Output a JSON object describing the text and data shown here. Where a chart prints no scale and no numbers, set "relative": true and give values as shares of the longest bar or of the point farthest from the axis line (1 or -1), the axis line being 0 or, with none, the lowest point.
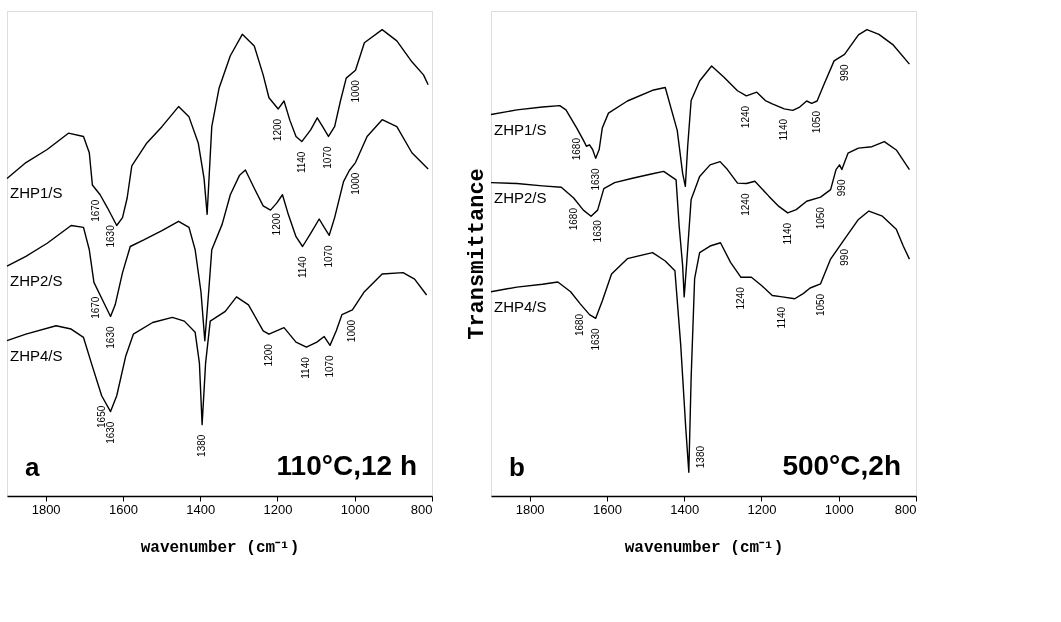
{
  "chart_data": [
    {
      "type": "line",
      "relative": true,
      "xlim": [
        1900,
        800
      ],
      "xticks": [
        1800,
        1600,
        1400,
        1200,
        1000,
        800
      ],
      "xlabel": "wavenumber (cm⁻¹)",
      "series": [
        {
          "name": "ZHP1/S",
          "color": "#000000",
          "x": [
            1900,
            1851,
            1796,
            1741,
            1702,
            1687,
            1679,
            1659,
            1640,
            1616,
            1601,
            1589,
            1577,
            1538,
            1499,
            1456,
            1429,
            1405,
            1390,
            1382,
            1378,
            1370,
            1351,
            1322,
            1291,
            1260,
            1237,
            1222,
            1198,
            1183,
            1168,
            1152,
            1137,
            1114,
            1097,
            1083,
            1068,
            1052,
            1037,
            1022,
            998,
            975,
            929,
            891,
            852,
            822,
            810
          ],
          "values": [
            0.681,
            0.715,
            0.743,
            0.778,
            0.771,
            0.736,
            0.667,
            0.646,
            0.618,
            0.58,
            0.597,
            0.639,
            0.708,
            0.757,
            0.792,
            0.835,
            0.813,
            0.757,
            0.681,
            0.604,
            0.667,
            0.792,
            0.875,
            0.944,
            0.99,
            0.965,
            0.903,
            0.854,
            0.83,
            0.847,
            0.806,
            0.771,
            0.76,
            0.785,
            0.811,
            0.792,
            0.771,
            0.792,
            0.847,
            0.896,
            0.913,
            0.972,
            1.0,
            0.976,
            0.931,
            0.903,
            0.882
          ]
        },
        {
          "name": "ZHP2/S",
          "color": "#000000",
          "x": [
            1900,
            1851,
            1796,
            1734,
            1702,
            1687,
            1675,
            1655,
            1632,
            1620,
            1601,
            1581,
            1546,
            1499,
            1456,
            1429,
            1413,
            1398,
            1388,
            1378,
            1370,
            1343,
            1322,
            1298,
            1283,
            1260,
            1237,
            1218,
            1202,
            1187,
            1172,
            1152,
            1135,
            1114,
            1092,
            1079,
            1066,
            1052,
            1029,
            1014,
            998,
            968,
            929,
            891,
            852,
            810
          ],
          "values": [
            0.493,
            0.514,
            0.542,
            0.58,
            0.576,
            0.528,
            0.458,
            0.424,
            0.385,
            0.41,
            0.479,
            0.535,
            0.549,
            0.569,
            0.589,
            0.576,
            0.528,
            0.438,
            0.333,
            0.438,
            0.528,
            0.583,
            0.646,
            0.688,
            0.699,
            0.66,
            0.622,
            0.613,
            0.628,
            0.646,
            0.604,
            0.556,
            0.535,
            0.563,
            0.594,
            0.576,
            0.559,
            0.597,
            0.674,
            0.698,
            0.715,
            0.771,
            0.807,
            0.792,
            0.736,
            0.701
          ]
        },
        {
          "name": "ZHP4/S",
          "color": "#000000",
          "x": [
            1900,
            1851,
            1773,
            1734,
            1702,
            1679,
            1655,
            1632,
            1616,
            1593,
            1573,
            1523,
            1472,
            1441,
            1413,
            1402,
            1395,
            1386,
            1374,
            1335,
            1306,
            1275,
            1237,
            1222,
            1183,
            1152,
            1125,
            1098,
            1079,
            1064,
            1048,
            1033,
            1006,
            975,
            929,
            875,
            845,
            814
          ],
          "values": [
            0.333,
            0.347,
            0.365,
            0.358,
            0.34,
            0.278,
            0.215,
            0.181,
            0.215,
            0.299,
            0.347,
            0.372,
            0.383,
            0.375,
            0.351,
            0.285,
            0.153,
            0.285,
            0.375,
            0.396,
            0.427,
            0.41,
            0.354,
            0.347,
            0.361,
            0.33,
            0.319,
            0.33,
            0.342,
            0.323,
            0.354,
            0.389,
            0.399,
            0.438,
            0.476,
            0.479,
            0.465,
            0.431
          ]
        }
      ],
      "annotations": [
        "a",
        "110°C,12 h",
        {
          "text": "1670",
          "x": 1670,
          "y": 0.657
        },
        {
          "text": "1630",
          "x": 1630,
          "y": 0.602
        },
        {
          "text": "1200",
          "x": 1198,
          "y": 0.83
        },
        {
          "text": "1140",
          "x": 1137,
          "y": 0.76
        },
        {
          "text": "1070",
          "x": 1068,
          "y": 0.771
        },
        {
          "text": "1000",
          "x": 998,
          "y": 0.913
        },
        {
          "text": "1670",
          "x": 1670,
          "y": 0.449
        },
        {
          "text": "1630",
          "x": 1632,
          "y": 0.385
        },
        {
          "text": "1200",
          "x": 1202,
          "y": 0.628
        },
        {
          "text": "1140",
          "x": 1135,
          "y": 0.535
        },
        {
          "text": "1070",
          "x": 1066,
          "y": 0.559
        },
        {
          "text": "1000",
          "x": 998,
          "y": 0.715
        },
        {
          "text": "1650",
          "x": 1655,
          "y": 0.215
        },
        {
          "text": "1630",
          "x": 1632,
          "y": 0.181
        },
        {
          "text": "1200",
          "x": 1222,
          "y": 0.347
        },
        {
          "text": "1140",
          "x": 1125,
          "y": 0.319
        },
        {
          "text": "1070",
          "x": 1064,
          "y": 0.323
        },
        {
          "text": "1000",
          "x": 1006,
          "y": 0.399
        },
        {
          "text": "1380",
          "x": 1395,
          "y": 0.153
        }
      ]
    },
    {
      "type": "line",
      "relative": true,
      "xlim": [
        1900,
        800
      ],
      "xticks": [
        1800,
        1600,
        1400,
        1200,
        1000,
        800
      ],
      "xlabel": "wavenumber (cm⁻¹)",
      "ylabel": "Transmittance",
      "series": [
        {
          "name": "ZHP1/S",
          "color": "#000000",
          "x": [
            1900,
            1833,
            1767,
            1722,
            1706,
            1678,
            1661,
            1653,
            1645,
            1637,
            1629,
            1620,
            1612,
            1596,
            1547,
            1482,
            1449,
            1418,
            1404,
            1397,
            1391,
            1382,
            1360,
            1329,
            1297,
            1262,
            1239,
            1212,
            1190,
            1172,
            1141,
            1119,
            1101,
            1083,
            1070,
            1056,
            1038,
            1012,
            985,
            949,
            927,
            896,
            860,
            817
          ],
          "values": [
            0.818,
            0.828,
            0.834,
            0.837,
            0.828,
            0.789,
            0.763,
            0.75,
            0.753,
            0.743,
            0.724,
            0.743,
            0.789,
            0.821,
            0.847,
            0.87,
            0.876,
            0.784,
            0.692,
            0.664,
            0.749,
            0.848,
            0.89,
            0.922,
            0.898,
            0.869,
            0.858,
            0.866,
            0.848,
            0.841,
            0.83,
            0.827,
            0.834,
            0.847,
            0.842,
            0.847,
            0.883,
            0.933,
            0.947,
            0.989,
            1.0,
            0.99,
            0.968,
            0.926
          ]
        },
        {
          "name": "ZHP2/S",
          "color": "#000000",
          "x": [
            1900,
            1833,
            1767,
            1718,
            1686,
            1661,
            1641,
            1624,
            1608,
            1580,
            1531,
            1482,
            1453,
            1421,
            1413,
            1404,
            1400,
            1394,
            1382,
            1360,
            1333,
            1307,
            1288,
            1262,
            1239,
            1217,
            1181,
            1155,
            1132,
            1110,
            1083,
            1047,
            1021,
            1007,
            998,
            992,
            976,
            949,
            914,
            882,
            851,
            817
          ],
          "values": [
            0.672,
            0.67,
            0.665,
            0.662,
            0.639,
            0.613,
            0.6,
            0.613,
            0.659,
            0.672,
            0.682,
            0.691,
            0.696,
            0.678,
            0.579,
            0.494,
            0.427,
            0.494,
            0.636,
            0.685,
            0.71,
            0.717,
            0.7,
            0.671,
            0.67,
            0.675,
            0.643,
            0.621,
            0.607,
            0.614,
            0.632,
            0.641,
            0.657,
            0.7,
            0.71,
            0.7,
            0.735,
            0.746,
            0.749,
            0.76,
            0.742,
            0.7
          ]
        },
        {
          "name": "ZHP4/S",
          "color": "#000000",
          "x": [
            1900,
            1833,
            1767,
            1727,
            1694,
            1669,
            1645,
            1629,
            1612,
            1588,
            1547,
            1482,
            1449,
            1424,
            1409,
            1396,
            1388,
            1382,
            1373,
            1360,
            1333,
            1306,
            1280,
            1253,
            1226,
            1199,
            1172,
            1146,
            1114,
            1092,
            1074,
            1047,
            1021,
            985,
            949,
            922,
            887,
            851,
            833,
            817
          ],
          "values": [
            0.438,
            0.448,
            0.454,
            0.459,
            0.438,
            0.412,
            0.389,
            0.381,
            0.418,
            0.476,
            0.509,
            0.522,
            0.504,
            0.483,
            0.324,
            0.147,
            0.051,
            0.253,
            0.466,
            0.522,
            0.536,
            0.543,
            0.501,
            0.469,
            0.469,
            0.451,
            0.43,
            0.427,
            0.423,
            0.434,
            0.446,
            0.455,
            0.508,
            0.551,
            0.593,
            0.611,
            0.6,
            0.572,
            0.536,
            0.508
          ]
        }
      ],
      "annotations": [
        "b",
        "500°C,2h",
        {
          "text": "1680",
          "x": 1678,
          "y": 0.789
        },
        {
          "text": "1630",
          "x": 1629,
          "y": 0.724
        },
        {
          "text": "1240",
          "x": 1239,
          "y": 0.858
        },
        {
          "text": "1140",
          "x": 1141,
          "y": 0.83
        },
        {
          "text": "1050",
          "x": 1056,
          "y": 0.847
        },
        {
          "text": "990",
          "x": 985,
          "y": 0.947
        },
        {
          "text": "1680",
          "x": 1686,
          "y": 0.639
        },
        {
          "text": "1630",
          "x": 1624,
          "y": 0.613
        },
        {
          "text": "1240",
          "x": 1239,
          "y": 0.67
        },
        {
          "text": "1140",
          "x": 1132,
          "y": 0.607
        },
        {
          "text": "1050",
          "x": 1047,
          "y": 0.641
        },
        {
          "text": "990",
          "x": 992,
          "y": 0.7
        },
        {
          "text": "1680",
          "x": 1669,
          "y": 0.412
        },
        {
          "text": "1630",
          "x": 1629,
          "y": 0.381
        },
        {
          "text": "1240",
          "x": 1253,
          "y": 0.469
        },
        {
          "text": "1140",
          "x": 1146,
          "y": 0.427
        },
        {
          "text": "1050",
          "x": 1047,
          "y": 0.455
        },
        {
          "text": "990",
          "x": 985,
          "y": 0.551
        },
        {
          "text": "1380",
          "x": 1388,
          "y": 0.051
        }
      ]
    }
  ]
}
